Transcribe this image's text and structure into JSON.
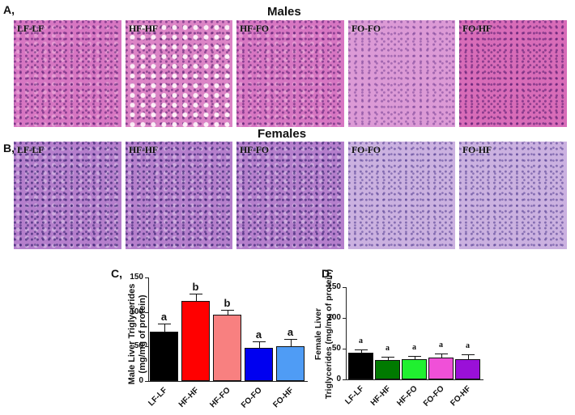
{
  "figure": {
    "panel_A": {
      "letter": "A,",
      "title": "Males",
      "images": [
        {
          "label": "LF-LF"
        },
        {
          "label": "HF-HF"
        },
        {
          "label": "HF-FO"
        },
        {
          "label": "FO-FO"
        },
        {
          "label": "FO-HF"
        }
      ]
    },
    "panel_B": {
      "letter": "B,",
      "title": "Females",
      "images": [
        {
          "label": "LF-LF"
        },
        {
          "label": "HF-HF"
        },
        {
          "label": "HF-FO"
        },
        {
          "label": "FO-FO"
        },
        {
          "label": "FO-HF"
        }
      ]
    },
    "panel_C": {
      "letter": "C,",
      "ylabel_line1": "Male Liver Triglycerides",
      "ylabel_line2": "(mg/mg of protein)"
    },
    "panel_D": {
      "letter": "D,",
      "ylabel_line1": "Female Liver",
      "ylabel_line2": "Triglycerides (mg/mg of protein)"
    }
  },
  "chart_data": [
    {
      "type": "bar",
      "panel": "C",
      "title": "",
      "xlabel": "",
      "ylabel": "Male Liver Triglycerides (mg/mg of protein)",
      "ylim": [
        0,
        150
      ],
      "yticks": [
        "0",
        "50",
        "100",
        "150"
      ],
      "grid": false,
      "categories": [
        "LF-LF",
        "HF-HF",
        "HF-FO",
        "FO-FO",
        "FO-HF"
      ],
      "values": [
        72,
        116,
        96,
        48,
        50
      ],
      "errors": [
        11,
        11,
        7,
        9,
        11
      ],
      "significance": [
        "a",
        "b",
        "b",
        "a",
        "a"
      ],
      "colors": [
        "#000000",
        "#ff0000",
        "#f88080",
        "#0000f0",
        "#4f9cf5"
      ]
    },
    {
      "type": "bar",
      "panel": "D",
      "title": "",
      "xlabel": "",
      "ylabel": "Female Liver Triglycerides (mg/mg of protein)",
      "ylim": [
        0,
        150
      ],
      "yticks": [
        "0",
        "50",
        "100",
        "150"
      ],
      "grid": false,
      "categories": [
        "LF-LF",
        "HF-HF",
        "HF-FO",
        "FO-FO",
        "FO-HF"
      ],
      "values": [
        43,
        32,
        33,
        36,
        33
      ],
      "errors": [
        6,
        5,
        5,
        6,
        8
      ],
      "significance": [
        "a",
        "a",
        "a",
        "a",
        "a"
      ],
      "colors": [
        "#000000",
        "#007a00",
        "#20f030",
        "#f050d8",
        "#9a10d8"
      ]
    }
  ]
}
